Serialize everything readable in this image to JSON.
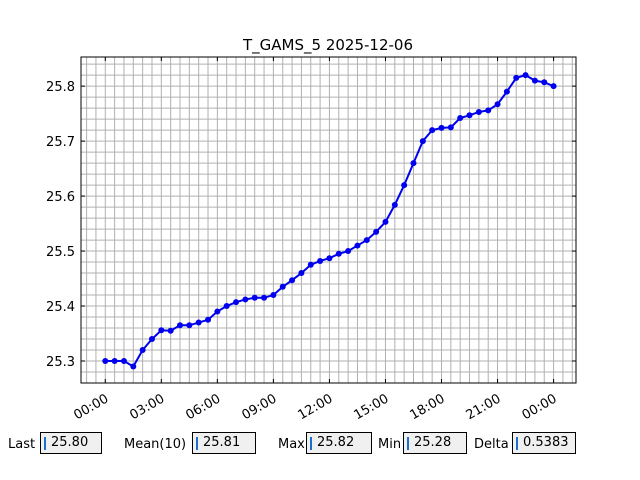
{
  "chart_data": {
    "type": "line",
    "title": "T_GAMS_5 2025-12-06",
    "x": [
      0,
      0.5,
      1,
      1.5,
      2,
      2.5,
      3,
      3.5,
      4,
      4.5,
      5,
      5.5,
      6,
      6.5,
      7,
      7.5,
      8,
      8.5,
      9,
      9.5,
      10,
      10.5,
      11,
      11.5,
      12,
      12.5,
      13,
      13.5,
      14,
      14.5,
      15,
      15.5,
      16,
      16.5,
      17,
      17.5,
      18,
      18.5,
      19,
      19.5,
      20,
      20.5,
      21,
      21.5,
      22,
      22.5,
      23,
      23.5,
      24
    ],
    "series": [
      {
        "color": "#0000ee",
        "values": [
          25.3,
          25.3,
          25.3,
          25.29,
          25.32,
          25.34,
          25.356,
          25.355,
          25.365,
          25.365,
          25.37,
          25.375,
          25.39,
          25.4,
          25.407,
          25.412,
          25.415,
          25.415,
          25.42,
          25.435,
          25.447,
          25.46,
          25.475,
          25.482,
          25.487,
          25.495,
          25.5,
          25.51,
          25.52,
          25.535,
          25.553,
          25.584,
          25.62,
          25.66,
          25.7,
          25.72,
          25.724,
          25.725,
          25.742,
          25.747,
          25.753,
          25.756,
          25.767,
          25.79,
          25.815,
          25.82,
          25.81,
          25.807,
          25.8
        ]
      }
    ],
    "xlim": [
      -1.3,
      25.2
    ],
    "ylim": [
      25.26,
      25.853
    ],
    "xticks": [
      {
        "value": 0,
        "label": "00:00"
      },
      {
        "value": 3,
        "label": "03:00"
      },
      {
        "value": 6,
        "label": "06:00"
      },
      {
        "value": 9,
        "label": "09:00"
      },
      {
        "value": 12,
        "label": "12:00"
      },
      {
        "value": 15,
        "label": "15:00"
      },
      {
        "value": 18,
        "label": "18:00"
      },
      {
        "value": 21,
        "label": "21:00"
      },
      {
        "value": 24,
        "label": "00:00"
      }
    ],
    "yticks": [
      25.3,
      25.4,
      25.5,
      25.6,
      25.7,
      25.8
    ],
    "grid": true,
    "minor_xstep": 0.5,
    "minor_ystep": 0.02
  },
  "panel": [
    {
      "label": "Last",
      "value": "25.80"
    },
    {
      "label": "Mean(10)",
      "value": "25.81"
    },
    {
      "label": "Max",
      "value": "25.82"
    },
    {
      "label": "Min",
      "value": "25.28"
    },
    {
      "label": "Delta",
      "value": "0.5383"
    }
  ]
}
